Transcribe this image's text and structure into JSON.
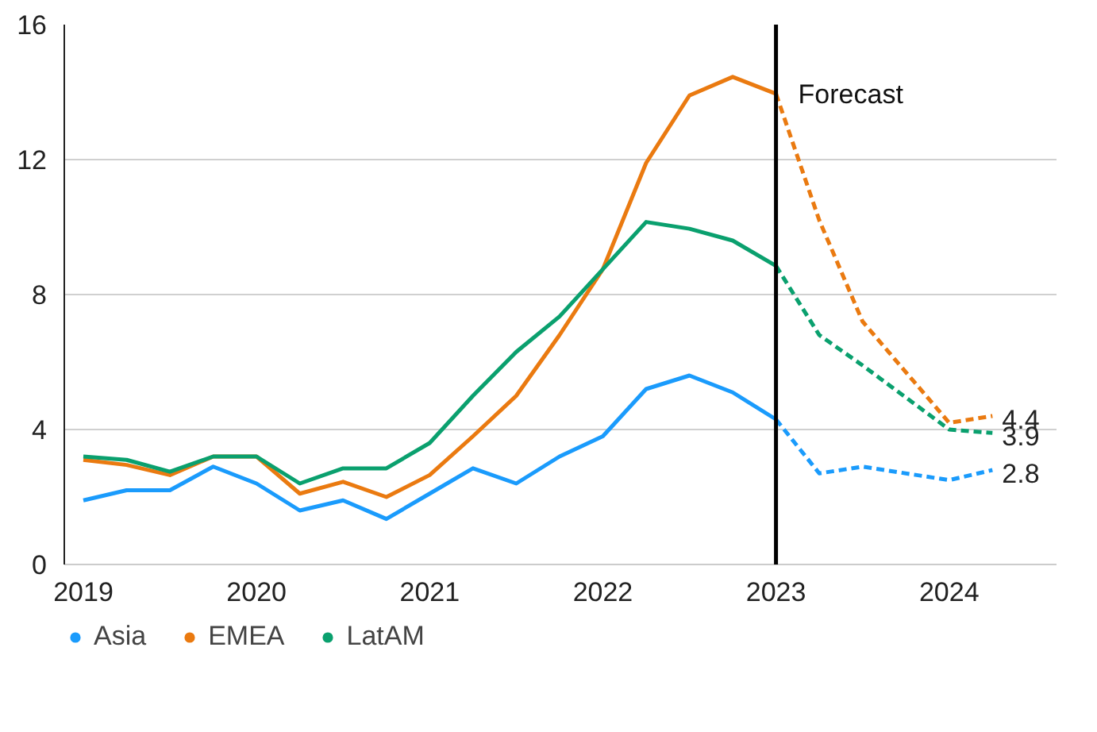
{
  "chart_data": {
    "type": "line",
    "xlim": [
      2018.89,
      2024.62
    ],
    "xticks": [
      2019,
      2020,
      2021,
      2022,
      2023,
      2024
    ],
    "ylim": [
      0,
      16
    ],
    "yticks": [
      0,
      4,
      8,
      12,
      16
    ],
    "grid": "y",
    "legend": "bottom",
    "line_style": "solid",
    "series": [
      {
        "name": "Asia",
        "color": "#1a9bfc",
        "x": [
          2019,
          2019.25,
          2019.5,
          2019.75,
          2020,
          2020.25,
          2020.5,
          2020.75,
          2021,
          2021.25,
          2021.5,
          2021.75,
          2022,
          2022.25,
          2022.5,
          2022.75,
          2023
        ],
        "values": [
          1.9,
          2.2,
          2.2,
          2.9,
          2.4,
          1.6,
          1.9,
          1.35,
          2.1,
          2.85,
          2.4,
          3.2,
          3.8,
          5.2,
          5.6,
          5.1,
          4.3
        ]
      },
      {
        "name": "EMEA",
        "color": "#ea7a10",
        "x": [
          2019,
          2019.25,
          2019.5,
          2019.75,
          2020,
          2020.25,
          2020.5,
          2020.75,
          2021,
          2021.25,
          2021.5,
          2021.75,
          2022,
          2022.25,
          2022.5,
          2022.75,
          2023
        ],
        "values": [
          3.1,
          2.95,
          2.65,
          3.2,
          3.2,
          2.1,
          2.45,
          2.0,
          2.65,
          3.8,
          5.0,
          6.8,
          8.75,
          11.9,
          13.9,
          14.45,
          13.95
        ]
      },
      {
        "name": "LatAM",
        "color": "#0aa06e",
        "x": [
          2019,
          2019.25,
          2019.5,
          2019.75,
          2020,
          2020.25,
          2020.5,
          2020.75,
          2021,
          2021.25,
          2021.5,
          2021.75,
          2022,
          2022.25,
          2022.5,
          2022.75,
          2023
        ],
        "values": [
          3.2,
          3.1,
          2.75,
          3.2,
          3.2,
          2.4,
          2.85,
          2.85,
          3.6,
          5.0,
          6.3,
          7.35,
          8.75,
          10.15,
          9.95,
          9.6,
          8.85
        ]
      },
      {
        "color": "#1a9bfc",
        "line_style": "dashed",
        "x": [
          2023,
          2023.25,
          2023.5,
          2024,
          2024.25
        ],
        "values": [
          4.3,
          2.7,
          2.9,
          2.5,
          2.8
        ],
        "value_labels": [
          null,
          null,
          null,
          null,
          "2.8"
        ]
      },
      {
        "color": "#ea7a10",
        "line_style": "dashed",
        "x": [
          2023,
          2023.25,
          2023.5,
          2024,
          2024.25
        ],
        "values": [
          13.95,
          10.2,
          7.2,
          4.2,
          4.4
        ],
        "value_labels": [
          null,
          null,
          null,
          null,
          "4.4"
        ]
      },
      {
        "color": "#0aa06e",
        "line_style": "dashed",
        "x": [
          2023,
          2023.25,
          2023.5,
          2024,
          2024.25
        ],
        "values": [
          8.85,
          6.8,
          5.9,
          4.0,
          3.9
        ],
        "value_labels": [
          null,
          null,
          null,
          null,
          "3.9"
        ]
      }
    ],
    "ref_lines": [
      {
        "axis": "x",
        "value": 2023,
        "color": "#000000"
      }
    ],
    "annotations": [
      {
        "text": "Forecast",
        "x": 2023,
        "y": 14.9
      }
    ]
  }
}
